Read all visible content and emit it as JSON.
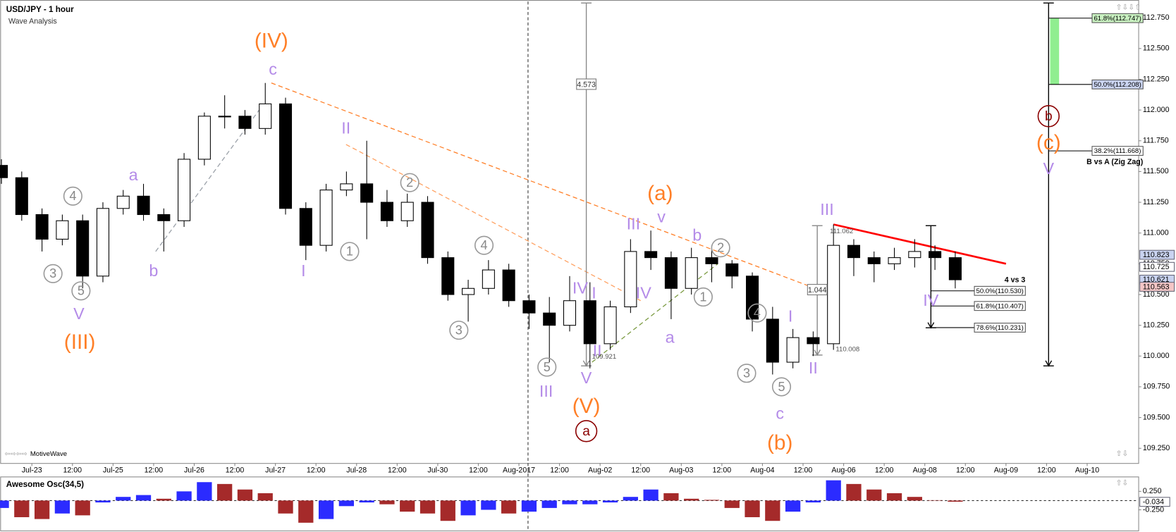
{
  "header": {
    "title": "USD/JPY - 1 hour",
    "subtitle": "Wave Analysis",
    "brand": "MotiveWave"
  },
  "chart_data": [
    {
      "type": "candlestick",
      "x": [
        -0.75,
        -0.25,
        0.25,
        0.75,
        1.25,
        1.75,
        2.25,
        2.75,
        3.25,
        3.75,
        4.25,
        4.75,
        5.25,
        5.75,
        6.25,
        6.75,
        7.25,
        7.75,
        8.25,
        8.75,
        9.25,
        9.75,
        10.25,
        10.75,
        11.25,
        11.75,
        12.25,
        12.75,
        13.25,
        13.75,
        14.25,
        14.75,
        15.25,
        15.75,
        16.25,
        16.75,
        17.25,
        17.75,
        18.25,
        18.75,
        19.25,
        19.75,
        20.25,
        20.75,
        21.25,
        21.75,
        22.25,
        22.75
      ],
      "open": [
        111.55,
        111.45,
        111.15,
        110.95,
        111.1,
        110.65,
        111.2,
        111.3,
        111.15,
        111.1,
        111.6,
        111.95,
        111.95,
        111.85,
        112.05,
        111.2,
        110.9,
        111.35,
        111.4,
        111.25,
        111.1,
        111.25,
        110.8,
        110.5,
        110.55,
        110.7,
        110.45,
        110.35,
        110.25,
        110.45,
        110.1,
        110.4,
        110.85,
        110.8,
        110.55,
        110.8,
        110.75,
        110.65,
        110.3,
        109.95,
        110.15,
        110.1,
        110.9,
        110.8,
        110.75,
        110.8,
        110.85,
        110.8
      ],
      "high": [
        111.6,
        111.5,
        111.2,
        111.15,
        111.15,
        111.25,
        111.35,
        111.4,
        111.2,
        111.65,
        111.98,
        112.12,
        112.0,
        112.22,
        112.1,
        111.25,
        111.4,
        111.5,
        111.75,
        111.35,
        111.32,
        111.3,
        110.85,
        110.62,
        110.78,
        110.75,
        110.5,
        110.48,
        110.65,
        110.6,
        110.45,
        110.95,
        111.02,
        110.85,
        110.88,
        110.9,
        110.78,
        110.68,
        110.4,
        110.22,
        110.2,
        111.07,
        110.95,
        110.85,
        110.88,
        110.95,
        110.9,
        110.85
      ],
      "low": [
        111.4,
        111.1,
        110.85,
        110.9,
        110.55,
        110.6,
        111.15,
        111.1,
        110.85,
        111.05,
        111.55,
        111.85,
        111.8,
        111.8,
        111.15,
        110.78,
        110.85,
        111.3,
        110.95,
        111.05,
        111.05,
        110.75,
        110.45,
        110.28,
        110.5,
        110.4,
        110.22,
        109.95,
        110.2,
        109.9,
        110.05,
        110.35,
        110.7,
        110.3,
        110.5,
        110.6,
        110.55,
        110.2,
        109.85,
        109.9,
        110.0,
        110.05,
        110.65,
        110.6,
        110.7,
        110.72,
        110.7,
        110.55
      ],
      "close": [
        111.45,
        111.15,
        110.95,
        111.1,
        110.65,
        111.2,
        111.3,
        111.15,
        111.1,
        111.6,
        111.95,
        111.95,
        111.85,
        112.05,
        111.2,
        110.9,
        111.35,
        111.4,
        111.25,
        111.1,
        111.25,
        110.8,
        110.5,
        110.55,
        110.7,
        110.45,
        110.35,
        110.25,
        110.45,
        110.1,
        110.4,
        110.85,
        110.8,
        110.55,
        110.8,
        110.75,
        110.65,
        110.3,
        109.95,
        110.15,
        110.1,
        110.9,
        110.8,
        110.75,
        110.8,
        110.85,
        110.8,
        110.62
      ],
      "up_color": "#ffffff",
      "down_color": "#000000",
      "xlim": [
        -0.78,
        27.26
      ],
      "ylim": [
        109.13,
        112.87
      ],
      "xticks": [
        {
          "value": 0,
          "label": "Jul-23"
        },
        {
          "value": 1,
          "label": "12:00"
        },
        {
          "value": 2,
          "label": "Jul-25"
        },
        {
          "value": 3,
          "label": "12:00"
        },
        {
          "value": 4,
          "label": "Jul-26"
        },
        {
          "value": 5,
          "label": "12:00"
        },
        {
          "value": 6,
          "label": "Jul-27"
        },
        {
          "value": 7,
          "label": "12:00"
        },
        {
          "value": 8,
          "label": "Jul-28"
        },
        {
          "value": 9,
          "label": "12:00"
        },
        {
          "value": 10,
          "label": "Jul-30"
        },
        {
          "value": 11,
          "label": "12:00"
        },
        {
          "value": 12,
          "label": "Aug-2017"
        },
        {
          "value": 13,
          "label": "12:00"
        },
        {
          "value": 14,
          "label": "Aug-02"
        },
        {
          "value": 15,
          "label": "12:00"
        },
        {
          "value": 16,
          "label": "Aug-03"
        },
        {
          "value": 17,
          "label": "12:00"
        },
        {
          "value": 18,
          "label": "Aug-04"
        },
        {
          "value": 19,
          "label": "12:00"
        },
        {
          "value": 20,
          "label": "Aug-06"
        },
        {
          "value": 21,
          "label": "12:00"
        },
        {
          "value": 22,
          "label": "Aug-08"
        },
        {
          "value": 23,
          "label": "12:00"
        },
        {
          "value": 24,
          "label": "Aug-09"
        },
        {
          "value": 25,
          "label": "12:00"
        },
        {
          "value": 26,
          "label": "Aug-10"
        }
      ],
      "yticks": [
        {
          "value": 109.25,
          "label": "109.250"
        },
        {
          "value": 109.5,
          "label": "109.500"
        },
        {
          "value": 109.75,
          "label": "109.750"
        },
        {
          "value": 110,
          "label": "110.000"
        },
        {
          "value": 110.25,
          "label": "110.250"
        },
        {
          "value": 110.5,
          "label": "110.500"
        },
        {
          "value": 110.75,
          "label": "110.750"
        },
        {
          "value": 111,
          "label": "111.000"
        },
        {
          "value": 111.25,
          "label": "111.250"
        },
        {
          "value": 111.5,
          "label": "111.500"
        },
        {
          "value": 111.75,
          "label": "111.750"
        },
        {
          "value": 112,
          "label": "112.000"
        },
        {
          "value": 112.25,
          "label": "112.250"
        },
        {
          "value": 112.5,
          "label": "112.500"
        },
        {
          "value": 112.75,
          "label": "112.750"
        }
      ],
      "trendlines": [
        {
          "x": [
            5.9,
            19.3
          ],
          "y": [
            112.22,
            110.55
          ],
          "color": "#ff7f27",
          "dash": true
        },
        {
          "x": [
            7.74,
            15.0
          ],
          "y": [
            111.72,
            110.45
          ],
          "color": "#ffa060",
          "dash": true
        },
        {
          "x": [
            13.8,
            16.9
          ],
          "y": [
            109.95,
            110.75
          ],
          "color": "#7a9a40",
          "dash": true
        },
        {
          "x": [
            3.05,
            5.6
          ],
          "y": [
            110.85,
            112.0
          ],
          "color": "#9aa0a8",
          "dash": true
        },
        {
          "x": [
            19.75,
            24.0
          ],
          "y": [
            111.07,
            110.75
          ],
          "color": "#ff0000",
          "dash": false
        }
      ],
      "arrows": [
        {
          "x": 13.66,
          "y": [
            112.87,
            109.92
          ],
          "color": "#888888"
        },
        {
          "x": 25.05,
          "y": [
            112.87,
            109.92
          ],
          "color": "#000000"
        },
        {
          "x": 22.15,
          "y": [
            111.06,
            110.23
          ],
          "color": "#000000"
        },
        {
          "x": 19.35,
          "y": [
            111.06,
            110.008
          ],
          "color": "#888888"
        }
      ],
      "fib_groups": [
        {
          "title": "B vs A (Zig Zag)",
          "x": 25.05,
          "band": "#90ee90",
          "levels": [
            {
              "value": 112.747,
              "label": "61.8%(112.747)",
              "color": "#c8f0c0"
            },
            {
              "value": 112.208,
              "label": "50.0%(112.208)",
              "color": "#c9d3f0"
            },
            {
              "value": 111.668,
              "label": "38.2%(111.668)",
              "color": "#ffffff"
            }
          ]
        },
        {
          "title": "4 vs 3",
          "x": 22.15,
          "levels": [
            {
              "value": 110.53,
              "label": "50.0%(110.530)",
              "color": "#ffffff"
            },
            {
              "value": 110.407,
              "label": "61.8%(110.407)",
              "color": "#ffffff"
            },
            {
              "value": 110.231,
              "label": "78.6%(110.231)",
              "color": "#ffffff"
            }
          ]
        }
      ],
      "price_tags": [
        {
          "value": 110.823,
          "color": "#c9d3f0"
        },
        {
          "value": 110.725,
          "color": "#ffffff"
        },
        {
          "value": 110.621,
          "color": "#c9d3f0"
        },
        {
          "value": 110.563,
          "color": "#f4c6c6"
        }
      ],
      "annotations": [
        {
          "text": "(IV)",
          "x": 5.9,
          "y": 112.56,
          "style": "orange"
        },
        {
          "text": "(III)",
          "x": 1.18,
          "y": 110.11,
          "style": "orange"
        },
        {
          "text": "(V)",
          "x": 13.66,
          "y": 109.59,
          "style": "orange"
        },
        {
          "text": "(a)",
          "x": 15.48,
          "y": 111.32,
          "style": "orange"
        },
        {
          "text": "(b)",
          "x": 18.43,
          "y": 109.29,
          "style": "orange"
        },
        {
          "text": "(c)",
          "x": 25.05,
          "y": 111.73,
          "style": "orange"
        },
        {
          "text": "c",
          "x": 5.94,
          "y": 112.33,
          "style": "lavender"
        },
        {
          "text": "a",
          "x": 2.5,
          "y": 111.47,
          "style": "lavender"
        },
        {
          "text": "b",
          "x": 3.0,
          "y": 110.69,
          "style": "lavender"
        },
        {
          "text": "V",
          "x": 1.16,
          "y": 110.34,
          "style": "lavender"
        },
        {
          "text": "II",
          "x": 7.74,
          "y": 111.85,
          "style": "lavender"
        },
        {
          "text": "I",
          "x": 6.69,
          "y": 110.69,
          "style": "lavender"
        },
        {
          "text": "IV",
          "x": 13.51,
          "y": 110.55,
          "style": "lavender"
        },
        {
          "text": "I",
          "x": 13.85,
          "y": 110.51,
          "style": "lavender"
        },
        {
          "text": "II",
          "x": 13.93,
          "y": 110.04,
          "style": "lavender"
        },
        {
          "text": "V",
          "x": 13.66,
          "y": 109.82,
          "style": "lavender"
        },
        {
          "text": "III",
          "x": 12.67,
          "y": 109.71,
          "style": "lavender"
        },
        {
          "text": "III",
          "x": 14.82,
          "y": 111.07,
          "style": "lavender"
        },
        {
          "text": "v",
          "x": 15.51,
          "y": 111.13,
          "style": "lavender"
        },
        {
          "text": "IV",
          "x": 15.07,
          "y": 110.51,
          "style": "lavender"
        },
        {
          "text": "a",
          "x": 15.72,
          "y": 110.15,
          "style": "lavender"
        },
        {
          "text": "b",
          "x": 16.39,
          "y": 110.98,
          "style": "lavender"
        },
        {
          "text": "c",
          "x": 18.43,
          "y": 109.53,
          "style": "lavender"
        },
        {
          "text": "I",
          "x": 18.69,
          "y": 110.32,
          "style": "lavender"
        },
        {
          "text": "II",
          "x": 19.25,
          "y": 109.9,
          "style": "lavender"
        },
        {
          "text": "III",
          "x": 19.59,
          "y": 111.19,
          "style": "lavender"
        },
        {
          "text": "IV",
          "x": 22.15,
          "y": 110.45,
          "style": "lavender"
        },
        {
          "text": "V",
          "x": 25.05,
          "y": 111.52,
          "style": "lavender"
        },
        {
          "text": "3",
          "x": 0.52,
          "y": 110.67,
          "style": "circle"
        },
        {
          "text": "4",
          "x": 1.01,
          "y": 111.3,
          "style": "circle"
        },
        {
          "text": "5",
          "x": 1.21,
          "y": 110.53,
          "style": "circle"
        },
        {
          "text": "1",
          "x": 7.83,
          "y": 110.85,
          "style": "circle"
        },
        {
          "text": "2",
          "x": 9.31,
          "y": 111.41,
          "style": "circle"
        },
        {
          "text": "4",
          "x": 11.14,
          "y": 110.9,
          "style": "circle"
        },
        {
          "text": "3",
          "x": 10.52,
          "y": 110.21,
          "style": "circle"
        },
        {
          "text": "5",
          "x": 12.69,
          "y": 109.91,
          "style": "circle"
        },
        {
          "text": "2",
          "x": 16.97,
          "y": 110.88,
          "style": "circle"
        },
        {
          "text": "1",
          "x": 16.54,
          "y": 110.48,
          "style": "circle"
        },
        {
          "text": "4",
          "x": 17.87,
          "y": 110.35,
          "style": "circle"
        },
        {
          "text": "3",
          "x": 17.61,
          "y": 109.86,
          "style": "circle"
        },
        {
          "text": "5",
          "x": 18.47,
          "y": 109.75,
          "style": "circle"
        },
        {
          "text": "a",
          "x": 13.66,
          "y": 109.39,
          "style": "circle-red"
        },
        {
          "text": "b",
          "x": 25.05,
          "y": 111.95,
          "style": "circle-red"
        },
        {
          "text": "4.573",
          "x": 13.66,
          "y": 112.21,
          "style": "box"
        },
        {
          "text": "1.044",
          "x": 19.35,
          "y": 110.54,
          "style": "box"
        },
        {
          "text": "111.062",
          "x": 19.95,
          "y": 111.02,
          "style": "small"
        },
        {
          "text": "110.008",
          "x": 20.1,
          "y": 110.06,
          "style": "small"
        },
        {
          "text": "109.921",
          "x": 14.1,
          "y": 110.0,
          "style": "small"
        }
      ]
    },
    {
      "type": "histogram",
      "title": "Awesome Osc(34,5)",
      "x": [
        -0.75,
        -0.25,
        0.25,
        0.75,
        1.25,
        1.75,
        2.25,
        2.75,
        3.25,
        3.75,
        4.25,
        4.75,
        5.25,
        5.75,
        6.25,
        6.75,
        7.25,
        7.75,
        8.25,
        8.75,
        9.25,
        9.75,
        10.25,
        10.75,
        11.25,
        11.75,
        12.25,
        12.75,
        13.25,
        13.75,
        14.25,
        14.75,
        15.25,
        15.75,
        16.25,
        16.75,
        17.25,
        17.75,
        18.25,
        18.75,
        19.25,
        19.75,
        20.25,
        20.75,
        21.25,
        21.75,
        22.25,
        22.75
      ],
      "values": [
        -0.2,
        -0.45,
        -0.5,
        -0.35,
        -0.4,
        -0.05,
        0.1,
        0.15,
        0.05,
        0.25,
        0.5,
        0.45,
        0.3,
        0.2,
        -0.35,
        -0.6,
        -0.5,
        -0.15,
        -0.05,
        -0.1,
        -0.3,
        -0.35,
        -0.55,
        -0.4,
        -0.25,
        -0.35,
        -0.3,
        -0.2,
        -0.1,
        -0.1,
        -0.05,
        0.1,
        0.3,
        0.2,
        0.05,
        0.02,
        -0.2,
        -0.45,
        -0.55,
        -0.3,
        -0.05,
        0.55,
        0.45,
        0.3,
        0.2,
        0.1,
        0.01,
        -0.03
      ],
      "up_color": "#2b2bff",
      "down_color": "#a52a2a",
      "ylim": [
        -0.75,
        0.55
      ],
      "yticks": [
        {
          "value": 0.25,
          "label": "0.250"
        },
        {
          "value": -0.25,
          "label": "-0.250"
        }
      ],
      "current_value": -0.034,
      "current_value_label": "-0.034"
    }
  ]
}
